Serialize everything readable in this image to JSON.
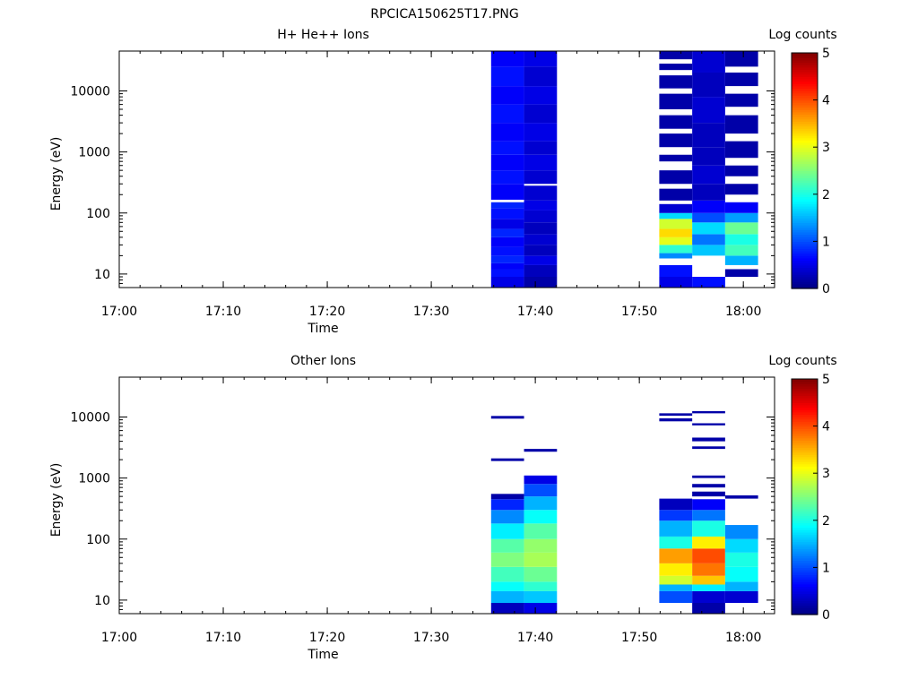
{
  "figure_title": "RPCICA150625T17.PNG",
  "chart_data": [
    {
      "type": "heatmap",
      "title": "H+ He++ Ions",
      "xlabel": "Time",
      "ylabel": "Energy (eV)",
      "colorbar_label": "Log counts",
      "colorbar_ticks": [
        "0",
        "1",
        "2",
        "3",
        "4",
        "5"
      ],
      "colorbar_range": [
        0,
        5
      ],
      "colormap": "jet",
      "x_range": [
        "17:00",
        "18:03"
      ],
      "x_ticks": [
        "17:00",
        "17:10",
        "17:20",
        "17:30",
        "17:40",
        "17:50",
        "18:00"
      ],
      "y_scale": "log",
      "y_range": [
        6,
        45000
      ],
      "y_ticks": [
        "10",
        "100",
        "1000",
        "10000"
      ],
      "columns": [
        {
          "t_start": "17:35:45",
          "t_end": "17:38:55",
          "bins": [
            [
              6,
              9,
              0.5
            ],
            [
              9,
              12,
              0.7
            ],
            [
              12,
              15,
              0.6
            ],
            [
              15,
              20,
              0.8
            ],
            [
              20,
              28,
              0.7
            ],
            [
              28,
              40,
              0.6
            ],
            [
              40,
              55,
              0.8
            ],
            [
              55,
              80,
              0.5
            ],
            [
              80,
              120,
              0.7
            ],
            [
              120,
              150,
              0.8
            ],
            [
              150,
              165,
              null
            ],
            [
              165,
              300,
              0.6
            ],
            [
              300,
              500,
              0.7
            ],
            [
              500,
              900,
              0.6
            ],
            [
              900,
              1500,
              0.7
            ],
            [
              1500,
              3000,
              0.6
            ],
            [
              3000,
              6000,
              0.7
            ],
            [
              6000,
              12000,
              0.6
            ],
            [
              12000,
              25000,
              0.7
            ],
            [
              25000,
              45000,
              0.6
            ]
          ]
        },
        {
          "t_start": "17:38:55",
          "t_end": "17:42:05",
          "bins": [
            [
              6,
              9,
              0.2
            ],
            [
              9,
              14,
              0.3
            ],
            [
              14,
              20,
              0.5
            ],
            [
              20,
              30,
              0.3
            ],
            [
              30,
              45,
              0.4
            ],
            [
              45,
              70,
              0.3
            ],
            [
              70,
              110,
              0.4
            ],
            [
              110,
              160,
              0.5
            ],
            [
              160,
              280,
              0.4
            ],
            [
              280,
              300,
              null
            ],
            [
              300,
              500,
              0.4
            ],
            [
              500,
              900,
              0.5
            ],
            [
              900,
              1500,
              0.4
            ],
            [
              1500,
              3000,
              0.5
            ],
            [
              3000,
              6000,
              0.4
            ],
            [
              6000,
              12000,
              0.5
            ],
            [
              12000,
              25000,
              0.4
            ],
            [
              25000,
              45000,
              0.5
            ]
          ]
        },
        {
          "t_start": "17:51:55",
          "t_end": "17:55:05",
          "bins": [
            [
              6,
              9,
              0.5
            ],
            [
              9,
              14,
              0.7
            ],
            [
              14,
              18,
              null
            ],
            [
              18,
              22,
              1.3
            ],
            [
              22,
              30,
              2.1
            ],
            [
              30,
              40,
              3.0
            ],
            [
              40,
              55,
              3.3
            ],
            [
              55,
              80,
              2.9
            ],
            [
              80,
              100,
              1.7
            ],
            [
              100,
              140,
              0.4
            ],
            [
              140,
              160,
              null
            ],
            [
              160,
              250,
              0.2
            ],
            [
              250,
              300,
              null
            ],
            [
              300,
              500,
              0.2
            ],
            [
              500,
              700,
              null
            ],
            [
              700,
              900,
              0.2
            ],
            [
              900,
              1200,
              null
            ],
            [
              1200,
              2000,
              0.2
            ],
            [
              2000,
              2400,
              null
            ],
            [
              2400,
              4000,
              0.2
            ],
            [
              4000,
              5000,
              null
            ],
            [
              5000,
              9000,
              0.2
            ],
            [
              9000,
              11000,
              null
            ],
            [
              11000,
              18000,
              0.2
            ],
            [
              18000,
              22000,
              null
            ],
            [
              22000,
              28000,
              0.2
            ],
            [
              28000,
              33000,
              null
            ],
            [
              33000,
              45000,
              0.2
            ]
          ]
        },
        {
          "t_start": "17:55:05",
          "t_end": "17:58:15",
          "bins": [
            [
              6,
              9,
              0.7
            ],
            [
              9,
              20,
              null
            ],
            [
              20,
              30,
              1.6
            ],
            [
              30,
              45,
              1.2
            ],
            [
              45,
              70,
              1.7
            ],
            [
              70,
              100,
              1.0
            ],
            [
              100,
              160,
              0.6
            ],
            [
              160,
              300,
              0.3
            ],
            [
              300,
              600,
              0.4
            ],
            [
              600,
              1200,
              0.3
            ],
            [
              1200,
              3000,
              0.3
            ],
            [
              3000,
              8000,
              0.4
            ],
            [
              8000,
              20000,
              0.3
            ],
            [
              20000,
              45000,
              0.4
            ]
          ]
        },
        {
          "t_start": "17:58:15",
          "t_end": "18:01:25",
          "bins": [
            [
              9,
              12,
              0.2
            ],
            [
              12,
              14,
              null
            ],
            [
              14,
              20,
              1.5
            ],
            [
              20,
              30,
              2.2
            ],
            [
              30,
              45,
              2.0
            ],
            [
              45,
              70,
              2.4
            ],
            [
              70,
              100,
              1.4
            ],
            [
              100,
              150,
              0.6
            ],
            [
              150,
              200,
              null
            ],
            [
              200,
              300,
              0.2
            ],
            [
              300,
              400,
              null
            ],
            [
              400,
              600,
              0.2
            ],
            [
              600,
              800,
              null
            ],
            [
              800,
              1500,
              0.2
            ],
            [
              1500,
              2000,
              null
            ],
            [
              2000,
              4000,
              0.2
            ],
            [
              4000,
              5500,
              null
            ],
            [
              5500,
              9000,
              0.2
            ],
            [
              9000,
              12000,
              null
            ],
            [
              12000,
              20000,
              0.2
            ],
            [
              20000,
              25000,
              null
            ],
            [
              25000,
              45000,
              0.2
            ]
          ]
        }
      ]
    },
    {
      "type": "heatmap",
      "title": "Other Ions",
      "xlabel": "Time",
      "ylabel": "Energy (eV)",
      "colorbar_label": "Log counts",
      "colorbar_ticks": [
        "0",
        "1",
        "2",
        "3",
        "4",
        "5"
      ],
      "colorbar_range": [
        0,
        5
      ],
      "colormap": "jet",
      "x_range": [
        "17:00",
        "18:03"
      ],
      "x_ticks": [
        "17:00",
        "17:10",
        "17:20",
        "17:30",
        "17:40",
        "17:50",
        "18:00"
      ],
      "y_scale": "log",
      "y_range": [
        6,
        45000
      ],
      "y_ticks": [
        "10",
        "100",
        "1000",
        "10000"
      ],
      "columns": [
        {
          "t_start": "17:35:45",
          "t_end": "17:38:55",
          "bins": [
            [
              6,
              9,
              0.3
            ],
            [
              9,
              14,
              1.5
            ],
            [
              14,
              20,
              1.9
            ],
            [
              20,
              35,
              2.2
            ],
            [
              35,
              60,
              2.5
            ],
            [
              60,
              100,
              2.3
            ],
            [
              100,
              180,
              1.8
            ],
            [
              180,
              300,
              1.3
            ],
            [
              300,
              450,
              0.8
            ],
            [
              450,
              550,
              0.2
            ],
            [
              1900,
              2100,
              0.2
            ],
            [
              9400,
              10400,
              0.2
            ]
          ]
        },
        {
          "t_start": "17:38:55",
          "t_end": "17:42:05",
          "bins": [
            [
              6,
              9,
              0.5
            ],
            [
              9,
              14,
              1.6
            ],
            [
              14,
              20,
              2.1
            ],
            [
              20,
              35,
              2.4
            ],
            [
              35,
              60,
              2.7
            ],
            [
              60,
              100,
              2.6
            ],
            [
              100,
              180,
              2.3
            ],
            [
              180,
              300,
              1.9
            ],
            [
              300,
              500,
              1.5
            ],
            [
              500,
              800,
              1.0
            ],
            [
              800,
              1100,
              0.5
            ],
            [
              2700,
              3000,
              0.2
            ]
          ]
        },
        {
          "t_start": "17:51:55",
          "t_end": "17:55:05",
          "bins": [
            [
              9,
              14,
              1.0
            ],
            [
              14,
              18,
              1.5
            ],
            [
              18,
              25,
              2.9
            ],
            [
              25,
              40,
              3.2
            ],
            [
              40,
              70,
              3.6
            ],
            [
              70,
              110,
              2.0
            ],
            [
              110,
              200,
              1.5
            ],
            [
              200,
              300,
              0.9
            ],
            [
              300,
              460,
              0.3
            ],
            [
              8500,
              9500,
              0.2
            ],
            [
              10500,
              11500,
              0.2
            ]
          ]
        },
        {
          "t_start": "17:55:05",
          "t_end": "17:58:15",
          "bins": [
            [
              6,
              9,
              0.2
            ],
            [
              9,
              14,
              0.4
            ],
            [
              14,
              18,
              1.8
            ],
            [
              18,
              25,
              3.4
            ],
            [
              25,
              40,
              3.8
            ],
            [
              40,
              70,
              4.0
            ],
            [
              70,
              110,
              3.2
            ],
            [
              110,
              200,
              2.0
            ],
            [
              200,
              300,
              1.2
            ],
            [
              300,
              450,
              0.6
            ],
            [
              500,
              600,
              0.2
            ],
            [
              700,
              800,
              0.2
            ],
            [
              1000,
              1100,
              0.2
            ],
            [
              3000,
              3300,
              0.2
            ],
            [
              4000,
              4600,
              0.2
            ],
            [
              7300,
              7900,
              0.2
            ],
            [
              11500,
              12500,
              0.2
            ]
          ]
        },
        {
          "t_start": "17:58:15",
          "t_end": "18:01:25",
          "bins": [
            [
              9,
              14,
              0.4
            ],
            [
              14,
              20,
              1.5
            ],
            [
              20,
              35,
              1.9
            ],
            [
              35,
              60,
              2.0
            ],
            [
              60,
              100,
              1.7
            ],
            [
              100,
              170,
              1.3
            ],
            [
              460,
              520,
              0.2
            ]
          ]
        }
      ]
    }
  ]
}
